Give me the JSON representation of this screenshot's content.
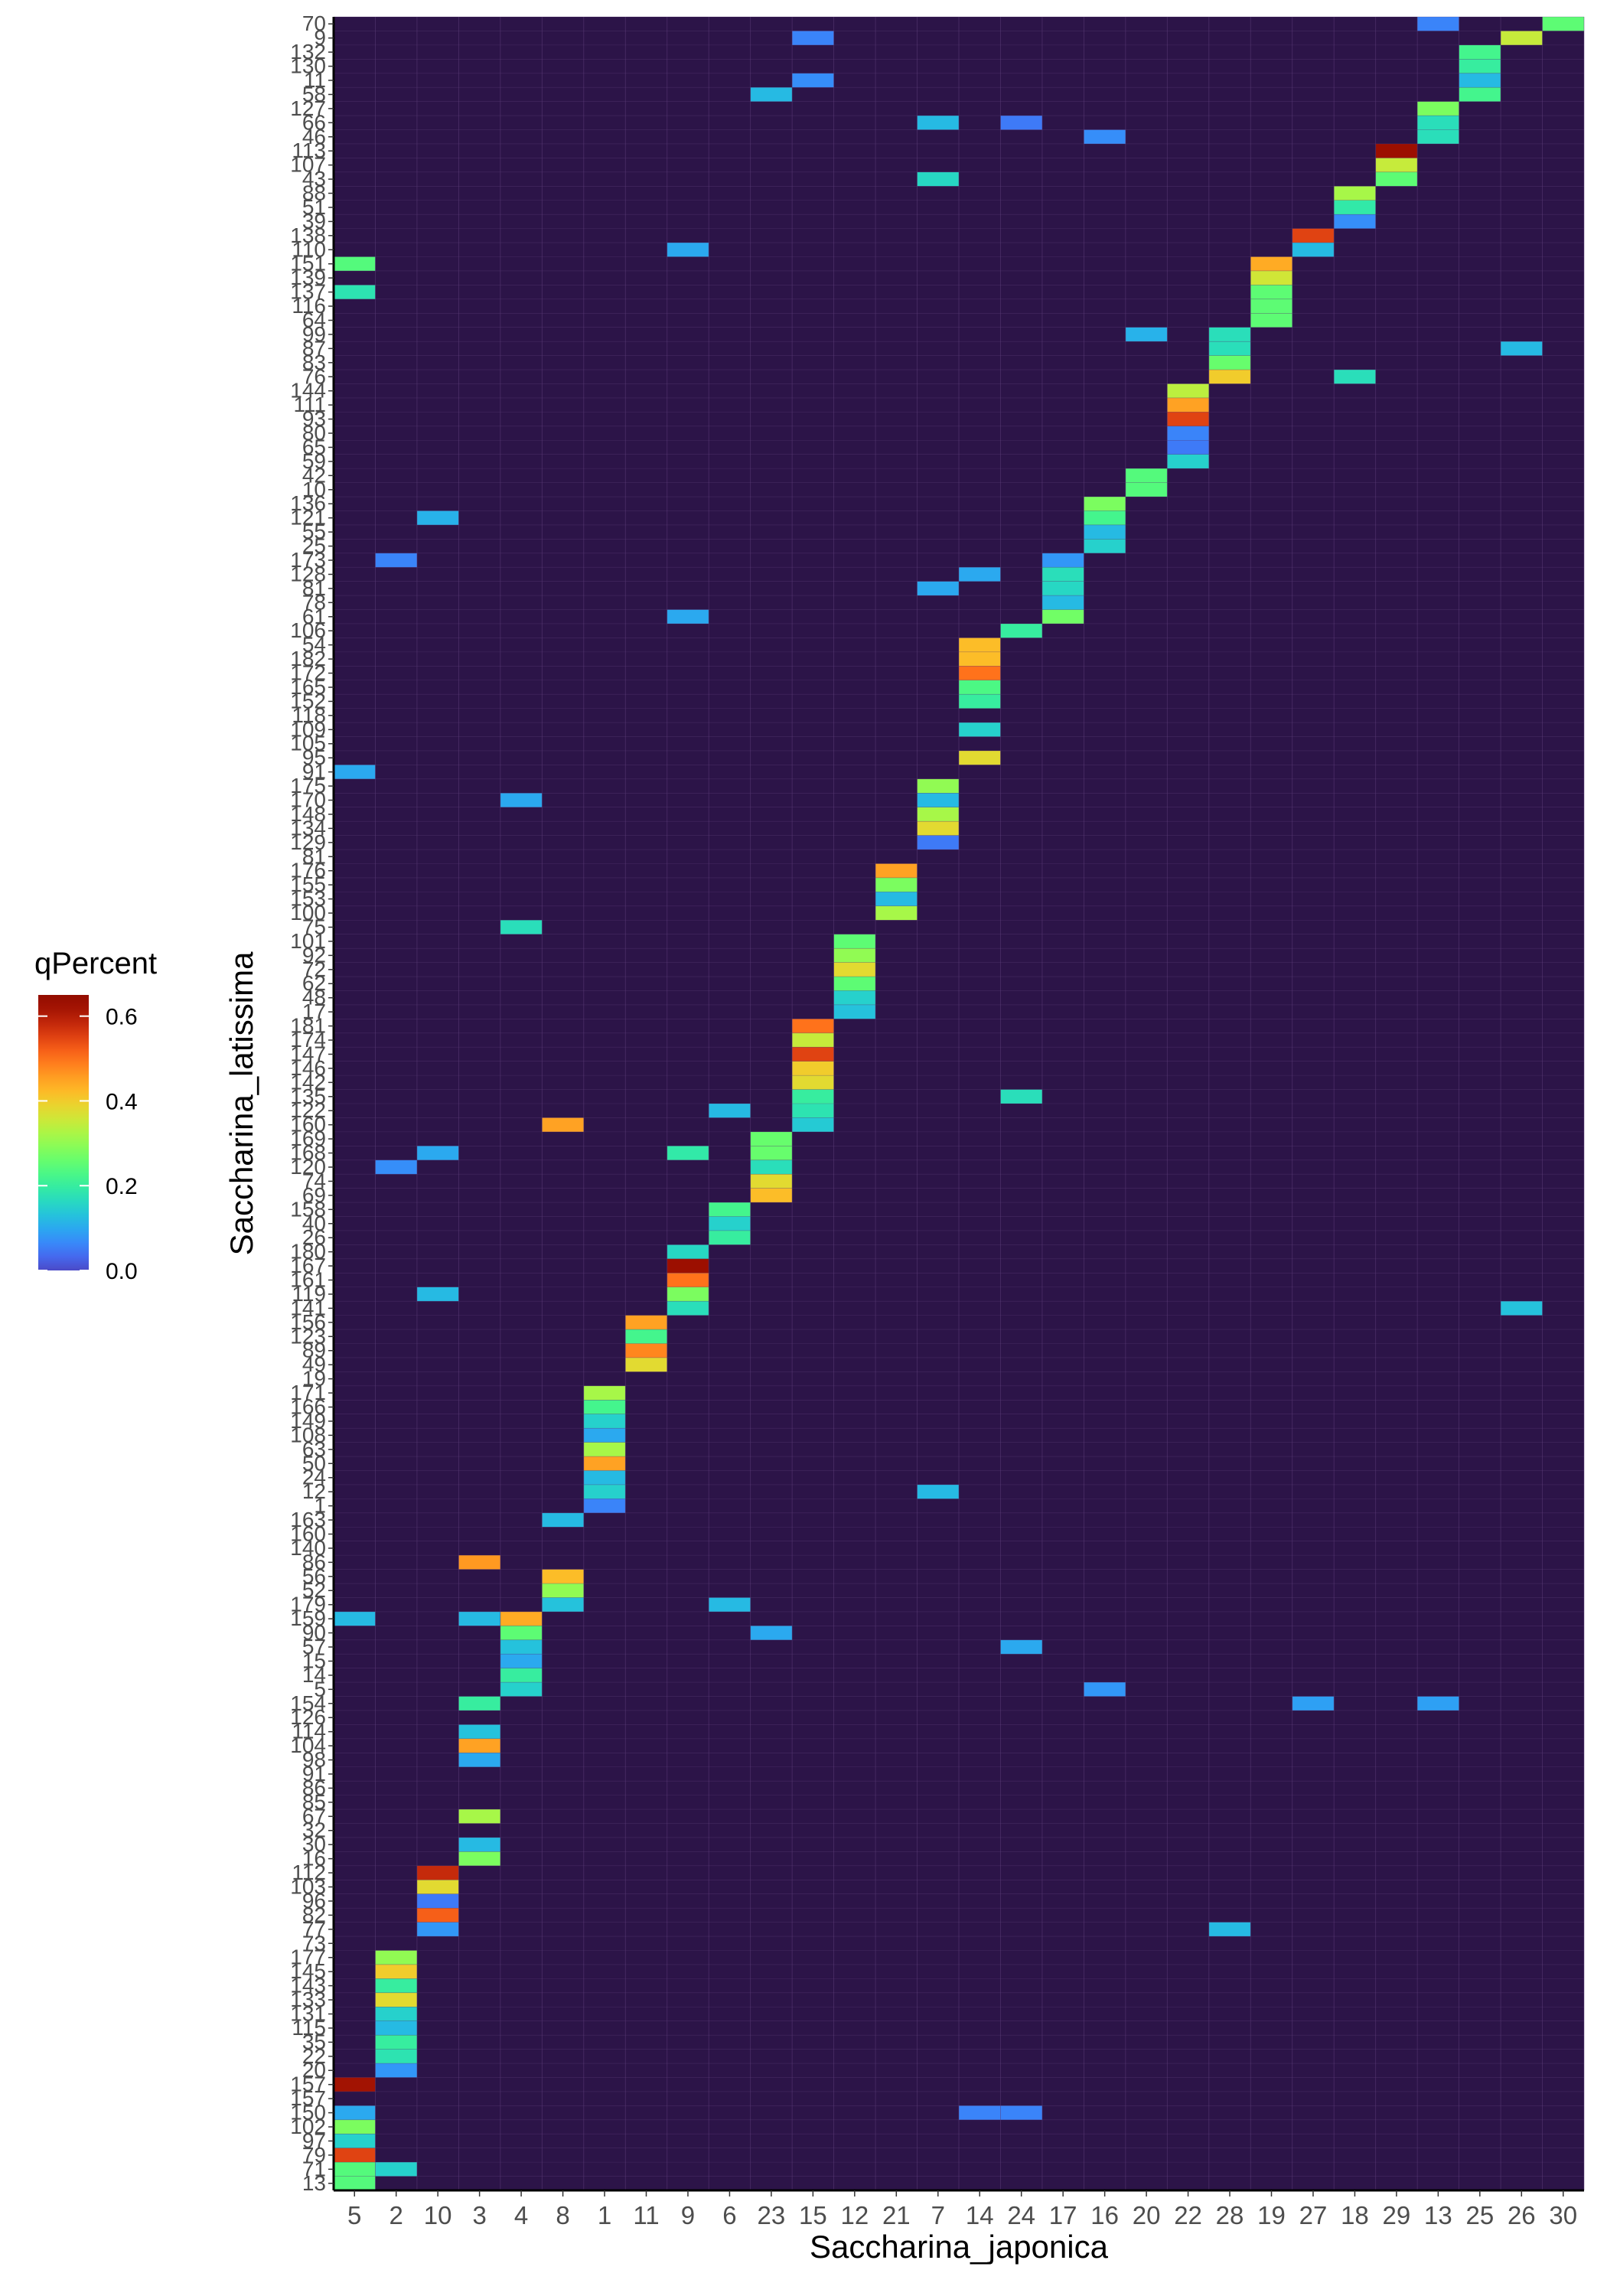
{
  "chart_data": {
    "type": "heatmap",
    "xlabel": "Saccharina_japonica",
    "ylabel": "Saccharina_latissima",
    "x_categories": [
      "5",
      "2",
      "10",
      "3",
      "4",
      "8",
      "1",
      "11",
      "9",
      "6",
      "23",
      "15",
      "12",
      "21",
      "7",
      "14",
      "24",
      "17",
      "16",
      "20",
      "22",
      "28",
      "19",
      "27",
      "18",
      "29",
      "13",
      "25",
      "26",
      "30"
    ],
    "y_categories": [
      "70",
      "9",
      "132",
      "130",
      "11",
      "58",
      "127",
      "66",
      "46",
      "113",
      "107",
      "43",
      "88",
      "51",
      "39",
      "138",
      "110",
      "151",
      "139",
      "137",
      "116",
      "64",
      "99",
      "87",
      "83",
      "76",
      "144",
      "111",
      "93",
      "80",
      "65",
      "59",
      "42",
      "10",
      "136",
      "121",
      "55",
      "25",
      "173",
      "128",
      "81",
      "78",
      "61",
      "106",
      "54",
      "182",
      "172",
      "165",
      "152",
      "118",
      "109",
      "105",
      "95",
      "91",
      "175",
      "170",
      "148",
      "134",
      "129",
      "81",
      "176",
      "155",
      "153",
      "100",
      "75",
      "101",
      "92",
      "72",
      "62",
      "48",
      "17",
      "181",
      "174",
      "147",
      "146",
      "142",
      "135",
      "122",
      "160",
      "169",
      "168",
      "120",
      "74",
      "69",
      "158",
      "40",
      "26",
      "180",
      "167",
      "161",
      "119",
      "141",
      "156",
      "123",
      "89",
      "49",
      "19",
      "171",
      "166",
      "149",
      "108",
      "63",
      "50",
      "24",
      "12",
      "1",
      "163",
      "160",
      "140",
      "86",
      "56",
      "52",
      "179",
      "159",
      "90",
      "57",
      "15",
      "14",
      "5",
      "154",
      "126",
      "114",
      "104",
      "98",
      "91",
      "86",
      "85",
      "67",
      "32",
      "30",
      "16",
      "112",
      "103",
      "96",
      "82",
      "77",
      "73",
      "177",
      "145",
      "143",
      "133",
      "131",
      "115",
      "35",
      "22",
      "20",
      "157",
      "157",
      "150",
      "102",
      "97",
      "79",
      "71",
      "13"
    ],
    "legend": {
      "title": "qPercent",
      "ticks": [
        0.0,
        0.2,
        0.4,
        0.6
      ],
      "tick_labels": [
        "0.0",
        "0.2",
        "0.4",
        "0.6"
      ],
      "range": [
        0,
        0.65
      ],
      "colormap": "turbo"
    },
    "background_color": "#2c1448",
    "cells": [
      {
        "x": "30",
        "y": "70",
        "v": 0.25
      },
      {
        "x": "26",
        "y": "9",
        "v": 0.35
      },
      {
        "x": "13",
        "y": "70",
        "v": 0.06
      },
      {
        "x": "25",
        "y": "132",
        "v": 0.22
      },
      {
        "x": "25",
        "y": "130",
        "v": 0.2
      },
      {
        "x": "25",
        "y": "11",
        "v": 0.12
      },
      {
        "x": "25",
        "y": "58",
        "v": 0.22
      },
      {
        "x": "15",
        "y": "9",
        "v": 0.06
      },
      {
        "x": "15",
        "y": "11",
        "v": 0.07
      },
      {
        "x": "23",
        "y": "58",
        "v": 0.12
      },
      {
        "x": "13",
        "y": "127",
        "v": 0.28
      },
      {
        "x": "13",
        "y": "66",
        "v": 0.17
      },
      {
        "x": "13",
        "y": "46",
        "v": 0.17
      },
      {
        "x": "7",
        "y": "66",
        "v": 0.12
      },
      {
        "x": "16",
        "y": "46",
        "v": 0.07
      },
      {
        "x": "24",
        "y": "66",
        "v": 0.05
      },
      {
        "x": "29",
        "y": "113",
        "v": 0.63
      },
      {
        "x": "29",
        "y": "107",
        "v": 0.35
      },
      {
        "x": "29",
        "y": "43",
        "v": 0.25
      },
      {
        "x": "7",
        "y": "43",
        "v": 0.16
      },
      {
        "x": "18",
        "y": "88",
        "v": 0.32
      },
      {
        "x": "18",
        "y": "51",
        "v": 0.19
      },
      {
        "x": "18",
        "y": "39",
        "v": 0.07
      },
      {
        "x": "27",
        "y": "138",
        "v": 0.55
      },
      {
        "x": "27",
        "y": "110",
        "v": 0.12
      },
      {
        "x": "5",
        "y": "151",
        "v": 0.24
      },
      {
        "x": "5",
        "y": "137",
        "v": 0.18
      },
      {
        "x": "9",
        "y": "110",
        "v": 0.1
      },
      {
        "x": "19",
        "y": "151",
        "v": 0.44
      },
      {
        "x": "19",
        "y": "139",
        "v": 0.36
      },
      {
        "x": "19",
        "y": "137",
        "v": 0.25
      },
      {
        "x": "19",
        "y": "116",
        "v": 0.25
      },
      {
        "x": "19",
        "y": "64",
        "v": 0.25
      },
      {
        "x": "20",
        "y": "99",
        "v": 0.11
      },
      {
        "x": "26",
        "y": "87",
        "v": 0.12
      },
      {
        "x": "28",
        "y": "99",
        "v": 0.17
      },
      {
        "x": "28",
        "y": "87",
        "v": 0.17
      },
      {
        "x": "28",
        "y": "83",
        "v": 0.26
      },
      {
        "x": "28",
        "y": "76",
        "v": 0.4
      },
      {
        "x": "18",
        "y": "76",
        "v": 0.17
      },
      {
        "x": "22",
        "y": "144",
        "v": 0.34
      },
      {
        "x": "22",
        "y": "111",
        "v": 0.45
      },
      {
        "x": "22",
        "y": "93",
        "v": 0.55
      },
      {
        "x": "22",
        "y": "80",
        "v": 0.06
      },
      {
        "x": "22",
        "y": "65",
        "v": 0.05
      },
      {
        "x": "22",
        "y": "59",
        "v": 0.15
      },
      {
        "x": "20",
        "y": "42",
        "v": 0.24
      },
      {
        "x": "20",
        "y": "10",
        "v": 0.24
      },
      {
        "x": "16",
        "y": "136",
        "v": 0.28
      },
      {
        "x": "16",
        "y": "121",
        "v": 0.22
      },
      {
        "x": "16",
        "y": "55",
        "v": 0.12
      },
      {
        "x": "16",
        "y": "25",
        "v": 0.15
      },
      {
        "x": "10",
        "y": "121",
        "v": 0.11
      },
      {
        "x": "2",
        "y": "173",
        "v": 0.06
      },
      {
        "x": "17",
        "y": "173",
        "v": 0.08
      },
      {
        "x": "17",
        "y": "128",
        "v": 0.17
      },
      {
        "x": "17",
        "y": "81",
        "v": 0.16
      },
      {
        "x": "17",
        "y": "78",
        "v": 0.12
      },
      {
        "x": "17",
        "y": "61",
        "v": 0.27
      },
      {
        "x": "14",
        "y": "128",
        "v": 0.1
      },
      {
        "x": "9",
        "y": "61",
        "v": 0.1
      },
      {
        "x": "24",
        "y": "106",
        "v": 0.2
      },
      {
        "x": "14",
        "y": "54",
        "v": 0.42
      },
      {
        "x": "14",
        "y": "182",
        "v": 0.42
      },
      {
        "x": "14",
        "y": "172",
        "v": 0.5
      },
      {
        "x": "14",
        "y": "165",
        "v": 0.23
      },
      {
        "x": "14",
        "y": "152",
        "v": 0.2
      },
      {
        "x": "14",
        "y": "109",
        "v": 0.15
      },
      {
        "x": "14",
        "y": "95",
        "v": 0.38
      },
      {
        "x": "5",
        "y": "91",
        "v": 0.1
      },
      {
        "x": "4",
        "y": "170",
        "v": 0.1
      },
      {
        "x": "7",
        "y": "175",
        "v": 0.3
      },
      {
        "x": "7",
        "y": "170",
        "v": 0.12
      },
      {
        "x": "7",
        "y": "148",
        "v": 0.32
      },
      {
        "x": "7",
        "y": "134",
        "v": 0.38
      },
      {
        "x": "7",
        "y": "129",
        "v": 0.05
      },
      {
        "x": "7",
        "y": "81",
        "v": 0.1
      },
      {
        "x": "21",
        "y": "176",
        "v": 0.45
      },
      {
        "x": "21",
        "y": "155",
        "v": 0.28
      },
      {
        "x": "21",
        "y": "153",
        "v": 0.12
      },
      {
        "x": "21",
        "y": "100",
        "v": 0.32
      },
      {
        "x": "4",
        "y": "75",
        "v": 0.17
      },
      {
        "x": "12",
        "y": "101",
        "v": 0.25
      },
      {
        "x": "12",
        "y": "92",
        "v": 0.3
      },
      {
        "x": "12",
        "y": "72",
        "v": 0.38
      },
      {
        "x": "12",
        "y": "62",
        "v": 0.25
      },
      {
        "x": "12",
        "y": "48",
        "v": 0.15
      },
      {
        "x": "12",
        "y": "17",
        "v": 0.13
      },
      {
        "x": "15",
        "y": "181",
        "v": 0.5
      },
      {
        "x": "15",
        "y": "174",
        "v": 0.35
      },
      {
        "x": "15",
        "y": "147",
        "v": 0.55
      },
      {
        "x": "15",
        "y": "146",
        "v": 0.4
      },
      {
        "x": "15",
        "y": "142",
        "v": 0.38
      },
      {
        "x": "15",
        "y": "135",
        "v": 0.2
      },
      {
        "x": "15",
        "y": "122",
        "v": 0.18
      },
      {
        "x": "15",
        "y": "160",
        "v": 0.14
      },
      {
        "x": "24",
        "y": "135",
        "v": 0.17
      },
      {
        "x": "6",
        "y": "122",
        "v": 0.12
      },
      {
        "x": "23",
        "y": "169",
        "v": 0.26
      },
      {
        "x": "23",
        "y": "168",
        "v": 0.26
      },
      {
        "x": "23",
        "y": "120",
        "v": 0.17
      },
      {
        "x": "23",
        "y": "74",
        "v": 0.38
      },
      {
        "x": "23",
        "y": "69",
        "v": 0.42
      },
      {
        "x": "9",
        "y": "168",
        "v": 0.19
      },
      {
        "x": "10",
        "y": "168",
        "v": 0.1
      },
      {
        "x": "2",
        "y": "120",
        "v": 0.07
      },
      {
        "x": "6",
        "y": "158",
        "v": 0.22
      },
      {
        "x": "6",
        "y": "40",
        "v": 0.15
      },
      {
        "x": "6",
        "y": "26",
        "v": 0.2
      },
      {
        "x": "9",
        "y": "180",
        "v": 0.16
      },
      {
        "x": "9",
        "y": "167",
        "v": 0.63
      },
      {
        "x": "9",
        "y": "161",
        "v": 0.5
      },
      {
        "x": "9",
        "y": "119",
        "v": 0.28
      },
      {
        "x": "9",
        "y": "141",
        "v": 0.17
      },
      {
        "x": "10",
        "y": "119",
        "v": 0.12
      },
      {
        "x": "26",
        "y": "141",
        "v": 0.13
      },
      {
        "x": "11",
        "y": "156",
        "v": 0.45
      },
      {
        "x": "11",
        "y": "123",
        "v": 0.22
      },
      {
        "x": "11",
        "y": "89",
        "v": 0.48
      },
      {
        "x": "11",
        "y": "49",
        "v": 0.38
      },
      {
        "x": "1",
        "y": "171",
        "v": 0.32
      },
      {
        "x": "1",
        "y": "166",
        "v": 0.22
      },
      {
        "x": "1",
        "y": "149",
        "v": 0.15
      },
      {
        "x": "1",
        "y": "108",
        "v": 0.1
      },
      {
        "x": "1",
        "y": "63",
        "v": 0.32
      },
      {
        "x": "1",
        "y": "50",
        "v": 0.45
      },
      {
        "x": "1",
        "y": "24",
        "v": 0.12
      },
      {
        "x": "1",
        "y": "12",
        "v": 0.15
      },
      {
        "x": "1",
        "y": "1",
        "v": 0.06
      },
      {
        "x": "7",
        "y": "12",
        "v": 0.12
      },
      {
        "x": "8",
        "y": "163",
        "v": 0.12
      },
      {
        "x": "8",
        "y": "160",
        "v": 0.45
      },
      {
        "x": "8",
        "y": "56",
        "v": 0.42
      },
      {
        "x": "8",
        "y": "52",
        "v": 0.3
      },
      {
        "x": "8",
        "y": "179",
        "v": 0.13
      },
      {
        "x": "5",
        "y": "159",
        "v": 0.12
      },
      {
        "x": "6",
        "y": "179",
        "v": 0.12
      },
      {
        "x": "4",
        "y": "159",
        "v": 0.44
      },
      {
        "x": "4",
        "y": "90",
        "v": 0.25
      },
      {
        "x": "4",
        "y": "57",
        "v": 0.13
      },
      {
        "x": "4",
        "y": "15",
        "v": 0.1
      },
      {
        "x": "4",
        "y": "14",
        "v": 0.2
      },
      {
        "x": "4",
        "y": "5",
        "v": 0.15
      },
      {
        "x": "3",
        "y": "159",
        "v": 0.12
      },
      {
        "x": "23",
        "y": "90",
        "v": 0.1
      },
      {
        "x": "24",
        "y": "57",
        "v": 0.1
      },
      {
        "x": "16",
        "y": "5",
        "v": 0.08
      },
      {
        "x": "27",
        "y": "154",
        "v": 0.09
      },
      {
        "x": "13",
        "y": "154",
        "v": 0.09
      },
      {
        "x": "3",
        "y": "154",
        "v": 0.2
      },
      {
        "x": "3",
        "y": "114",
        "v": 0.13
      },
      {
        "x": "3",
        "y": "104",
        "v": 0.45
      },
      {
        "x": "3",
        "y": "98",
        "v": 0.1
      },
      {
        "x": "3",
        "y": "86",
        "v": 0.46
      },
      {
        "x": "3",
        "y": "67",
        "v": 0.32
      },
      {
        "x": "3",
        "y": "30",
        "v": 0.12
      },
      {
        "x": "3",
        "y": "16",
        "v": 0.28
      },
      {
        "x": "10",
        "y": "112",
        "v": 0.58
      },
      {
        "x": "10",
        "y": "103",
        "v": 0.38
      },
      {
        "x": "10",
        "y": "96",
        "v": 0.05
      },
      {
        "x": "10",
        "y": "82",
        "v": 0.52
      },
      {
        "x": "10",
        "y": "77",
        "v": 0.08
      },
      {
        "x": "28",
        "y": "77",
        "v": 0.12
      },
      {
        "x": "2",
        "y": "177",
        "v": 0.3
      },
      {
        "x": "2",
        "y": "145",
        "v": 0.4
      },
      {
        "x": "2",
        "y": "143",
        "v": 0.2
      },
      {
        "x": "2",
        "y": "133",
        "v": 0.38
      },
      {
        "x": "2",
        "y": "131",
        "v": 0.15
      },
      {
        "x": "2",
        "y": "115",
        "v": 0.12
      },
      {
        "x": "2",
        "y": "35",
        "v": 0.2
      },
      {
        "x": "2",
        "y": "22",
        "v": 0.18
      },
      {
        "x": "2",
        "y": "20",
        "v": 0.08
      },
      {
        "x": "5",
        "y": "157",
        "v": 0.62
      },
      {
        "x": "5",
        "y": "150",
        "v": 0.1
      },
      {
        "x": "5",
        "y": "102",
        "v": 0.28
      },
      {
        "x": "5",
        "y": "97",
        "v": 0.15
      },
      {
        "x": "5",
        "y": "79",
        "v": 0.55
      },
      {
        "x": "5",
        "y": "71",
        "v": 0.24
      },
      {
        "x": "5",
        "y": "13",
        "v": 0.24
      },
      {
        "x": "2",
        "y": "71",
        "v": 0.15
      },
      {
        "x": "14",
        "y": "150",
        "v": 0.06
      },
      {
        "x": "24",
        "y": "150",
        "v": 0.06
      }
    ]
  }
}
